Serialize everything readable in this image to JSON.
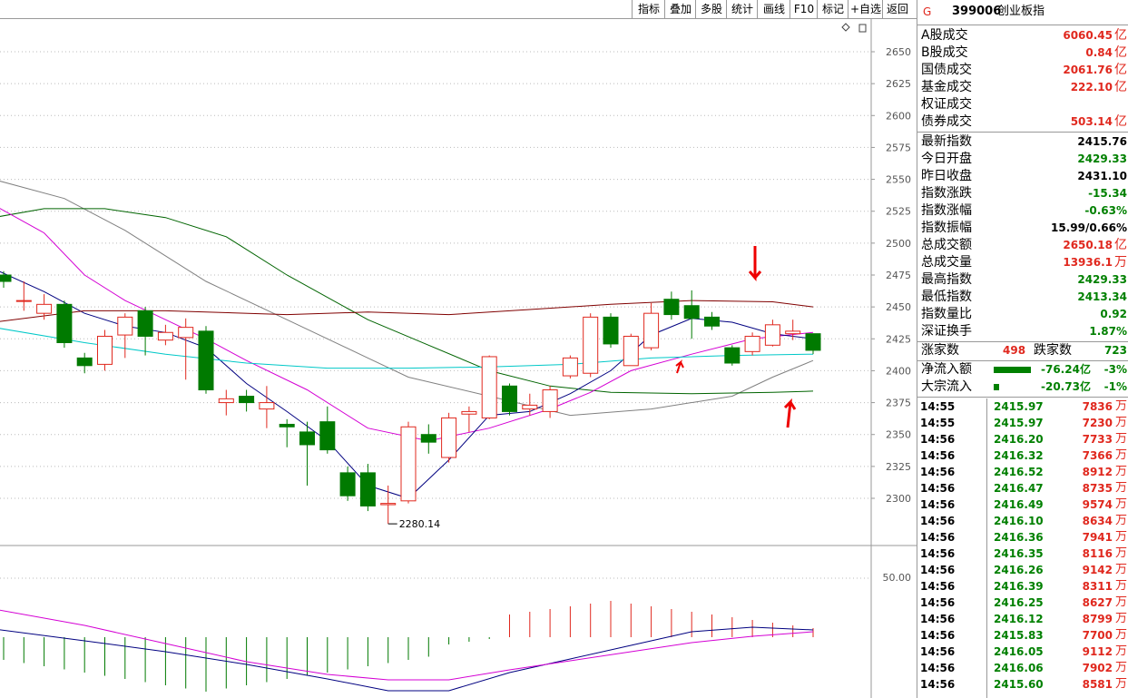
{
  "toolbar": {
    "buttons": [
      {
        "id": "indicator",
        "label": "指标"
      },
      {
        "id": "overlay",
        "label": "叠加"
      },
      {
        "id": "multi",
        "label": "多股"
      },
      {
        "id": "stats",
        "label": "统计"
      },
      {
        "id": "draw",
        "label": "画线"
      },
      {
        "id": "f10",
        "label": "F10"
      },
      {
        "id": "mark",
        "label": "标记"
      },
      {
        "id": "add-watch",
        "label": "+自选"
      },
      {
        "id": "back",
        "label": "返回"
      }
    ]
  },
  "chart": {
    "y_ticks": [
      "2650",
      "2625",
      "2600",
      "2575",
      "2550",
      "2525",
      "2500",
      "2475",
      "2450",
      "2425",
      "2400",
      "2375",
      "2350",
      "2325",
      "2300"
    ],
    "low_label": "2280.14",
    "sub_tick": "50.00"
  },
  "chart_data": {
    "type": "candlestick",
    "ylim": [
      2280,
      2665
    ],
    "candles": [
      {
        "o": 2475,
        "c": 2470,
        "h": 2478,
        "l": 2465
      },
      {
        "o": 2455,
        "c": 2455,
        "h": 2470,
        "l": 2447
      },
      {
        "o": 2445,
        "c": 2452,
        "h": 2460,
        "l": 2440
      },
      {
        "o": 2452,
        "c": 2422,
        "h": 2455,
        "l": 2418
      },
      {
        "o": 2410,
        "c": 2404,
        "h": 2414,
        "l": 2398
      },
      {
        "o": 2405,
        "c": 2427,
        "h": 2432,
        "l": 2400
      },
      {
        "o": 2428,
        "c": 2442,
        "h": 2445,
        "l": 2410
      },
      {
        "o": 2447,
        "c": 2427,
        "h": 2450,
        "l": 2412
      },
      {
        "o": 2424,
        "c": 2430,
        "h": 2436,
        "l": 2420
      },
      {
        "o": 2426,
        "c": 2434,
        "h": 2441,
        "l": 2393
      },
      {
        "o": 2431,
        "c": 2385,
        "h": 2435,
        "l": 2382
      },
      {
        "o": 2375,
        "c": 2378,
        "h": 2385,
        "l": 2365
      },
      {
        "o": 2380,
        "c": 2375,
        "h": 2385,
        "l": 2368
      },
      {
        "o": 2370,
        "c": 2375,
        "h": 2388,
        "l": 2355
      },
      {
        "o": 2358,
        "c": 2356,
        "h": 2362,
        "l": 2340
      },
      {
        "o": 2352,
        "c": 2342,
        "h": 2360,
        "l": 2310
      },
      {
        "o": 2360,
        "c": 2338,
        "h": 2372,
        "l": 2335
      },
      {
        "o": 2320,
        "c": 2302,
        "h": 2325,
        "l": 2298
      },
      {
        "o": 2320,
        "c": 2294,
        "h": 2327,
        "l": 2290
      },
      {
        "o": 2295,
        "c": 2296,
        "h": 2310,
        "l": 2280
      },
      {
        "o": 2298,
        "c": 2356,
        "h": 2360,
        "l": 2296
      },
      {
        "o": 2350,
        "c": 2344,
        "h": 2358,
        "l": 2335
      },
      {
        "o": 2332,
        "c": 2363,
        "h": 2367,
        "l": 2328
      },
      {
        "o": 2366,
        "c": 2368,
        "h": 2372,
        "l": 2352
      },
      {
        "o": 2363,
        "c": 2411,
        "h": 2412,
        "l": 2362
      },
      {
        "o": 2388,
        "c": 2368,
        "h": 2390,
        "l": 2365
      },
      {
        "o": 2370,
        "c": 2373,
        "h": 2382,
        "l": 2365
      },
      {
        "o": 2368,
        "c": 2385,
        "h": 2388,
        "l": 2363
      },
      {
        "o": 2396,
        "c": 2410,
        "h": 2412,
        "l": 2394
      },
      {
        "o": 2398,
        "c": 2442,
        "h": 2445,
        "l": 2395
      },
      {
        "o": 2442,
        "c": 2421,
        "h": 2445,
        "l": 2418
      },
      {
        "o": 2404,
        "c": 2427,
        "h": 2429,
        "l": 2404
      },
      {
        "o": 2418,
        "c": 2445,
        "h": 2453,
        "l": 2416
      },
      {
        "o": 2456,
        "c": 2444,
        "h": 2462,
        "l": 2440
      },
      {
        "o": 2451,
        "c": 2441,
        "h": 2463,
        "l": 2425
      },
      {
        "o": 2442,
        "c": 2435,
        "h": 2446,
        "l": 2432
      },
      {
        "o": 2418,
        "c": 2406,
        "h": 2420,
        "l": 2404
      },
      {
        "o": 2415,
        "c": 2427,
        "h": 2430,
        "l": 2412
      },
      {
        "o": 2420,
        "c": 2436,
        "h": 2440,
        "l": 2419
      },
      {
        "o": 2429,
        "c": 2431,
        "h": 2440,
        "l": 2424
      },
      {
        "o": 2429,
        "c": 2416,
        "h": 2429,
        "l": 2413
      }
    ],
    "colors": {
      "up": "#e0281e",
      "down": "#007a00",
      "ma_black": "#000080",
      "ma_magenta": "#d400d4",
      "ma_gray": "#808080",
      "ma_green": "#006400",
      "ma_maroon": "#800000",
      "ma_cyan": "#00c8c8"
    }
  },
  "panel": {
    "marker": "G",
    "code": "399006",
    "name": "创业板指",
    "volume_rows": [
      {
        "label": "A股成交",
        "value": "6060.45",
        "unit": "亿"
      },
      {
        "label": "B股成交",
        "value": "0.84",
        "unit": "亿"
      },
      {
        "label": "国债成交",
        "value": "2061.76",
        "unit": "亿"
      },
      {
        "label": "基金成交",
        "value": "222.10",
        "unit": "亿"
      },
      {
        "label": "权证成交",
        "value": "",
        "unit": ""
      },
      {
        "label": "债券成交",
        "value": "503.14",
        "unit": "亿"
      }
    ],
    "index_rows": [
      {
        "label": "最新指数",
        "value": "2415.76",
        "color": "black"
      },
      {
        "label": "今日开盘",
        "value": "2429.33",
        "color": "green"
      },
      {
        "label": "昨日收盘",
        "value": "2431.10",
        "color": "black"
      },
      {
        "label": "指数涨跌",
        "value": "-15.34",
        "color": "green"
      },
      {
        "label": "指数涨幅",
        "value": "-0.63%",
        "color": "green"
      },
      {
        "label": "指数振幅",
        "value": "15.99/0.66%",
        "color": "black"
      },
      {
        "label": "总成交额",
        "value": "2650.18",
        "unit": "亿",
        "color": "red"
      },
      {
        "label": "总成交量",
        "value": "13936.1",
        "unit": "万",
        "color": "red"
      },
      {
        "label": "最高指数",
        "value": "2429.33",
        "color": "green"
      },
      {
        "label": "最低指数",
        "value": "2413.34",
        "color": "green"
      },
      {
        "label": "指数量比",
        "value": "0.92",
        "color": "green"
      },
      {
        "label": "深证换手",
        "value": "1.87%",
        "color": "green"
      }
    ],
    "updown": {
      "up_label": "涨家数",
      "up_value": "498",
      "down_label": "跌家数",
      "down_value": "723"
    },
    "flows": [
      {
        "label": "净流入额",
        "value": "-76.24亿",
        "pct": "-3%",
        "bar": 0.9
      },
      {
        "label": "大宗流入",
        "value": "-20.73亿",
        "pct": "-1%",
        "bar": 0.12
      }
    ],
    "ticks": [
      {
        "t": "14:55",
        "p": "2415.97",
        "v": "7836"
      },
      {
        "t": "14:55",
        "p": "2415.97",
        "v": "7230"
      },
      {
        "t": "14:56",
        "p": "2416.20",
        "v": "7733"
      },
      {
        "t": "14:56",
        "p": "2416.32",
        "v": "7366"
      },
      {
        "t": "14:56",
        "p": "2416.52",
        "v": "8912"
      },
      {
        "t": "14:56",
        "p": "2416.47",
        "v": "8735"
      },
      {
        "t": "14:56",
        "p": "2416.49",
        "v": "9574"
      },
      {
        "t": "14:56",
        "p": "2416.10",
        "v": "8634"
      },
      {
        "t": "14:56",
        "p": "2416.36",
        "v": "7941"
      },
      {
        "t": "14:56",
        "p": "2416.35",
        "v": "8116"
      },
      {
        "t": "14:56",
        "p": "2416.26",
        "v": "9142"
      },
      {
        "t": "14:56",
        "p": "2416.39",
        "v": "8311"
      },
      {
        "t": "14:56",
        "p": "2416.25",
        "v": "8627"
      },
      {
        "t": "14:56",
        "p": "2416.12",
        "v": "8799"
      },
      {
        "t": "14:56",
        "p": "2415.83",
        "v": "7700"
      },
      {
        "t": "14:56",
        "p": "2416.05",
        "v": "9112"
      },
      {
        "t": "14:56",
        "p": "2416.06",
        "v": "7902"
      },
      {
        "t": "14:56",
        "p": "2415.60",
        "v": "8581"
      }
    ],
    "tick_unit": "万"
  }
}
